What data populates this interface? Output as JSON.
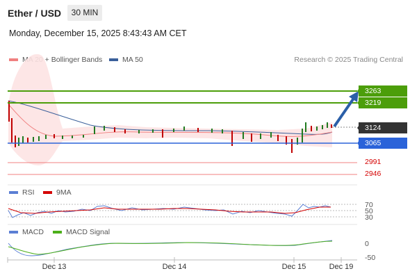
{
  "header": {
    "pair": "Ether / USD",
    "interval": "30 MIN",
    "timestamp": "Monday, December 15, 2025 8:43:43 AM CET"
  },
  "legend": {
    "bollinger": {
      "label": "MA 20 + Bollinger Bands",
      "color": "#f08080"
    },
    "ma50": {
      "label": "MA 50",
      "color": "#3a5f9a"
    },
    "credit": "Research © 2025 Trading Central",
    "rsi": {
      "label": "RSI",
      "color": "#5b7fd4"
    },
    "rsi_ma": {
      "label": "9MA",
      "color": "#d40000"
    },
    "macd": {
      "label": "MACD",
      "color": "#5b7fd4"
    },
    "macd_signal": {
      "label": "MACD Signal",
      "color": "#4caf1a"
    }
  },
  "levels": {
    "r2": {
      "value": "3263",
      "color": "#4c9e0a"
    },
    "r1": {
      "value": "3219",
      "color": "#4c9e0a"
    },
    "last": {
      "value": "3124",
      "color": "#333333"
    },
    "pivot": {
      "value": "3065",
      "color": "#2b63d9"
    },
    "s1": {
      "value": "2991",
      "color": "#d40000"
    },
    "s2": {
      "value": "2946",
      "color": "#d40000"
    }
  },
  "rsi_axis": {
    "t70": "70",
    "t50": "50",
    "t30": "30"
  },
  "macd_axis": {
    "t0": "0",
    "tm50": "-50"
  },
  "x_axis": {
    "d1": "Dec 13",
    "d2": "Dec 14",
    "d3": "Dec 15",
    "d4": "Dec 19"
  }
}
